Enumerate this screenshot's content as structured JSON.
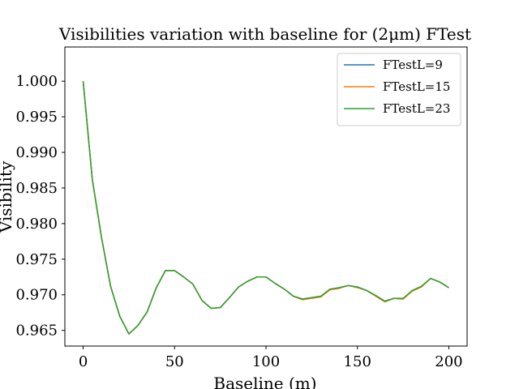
{
  "chart_data": {
    "type": "line",
    "title": "Visibilities variation with baseline for (2μm) FTest",
    "xlabel": "Baseline (m)",
    "ylabel": "Visibility",
    "xlim": [
      -10,
      210
    ],
    "ylim": [
      0.9628,
      1.0048
    ],
    "xticks": [
      0,
      50,
      100,
      150,
      200
    ],
    "yticks": [
      0.965,
      0.97,
      0.975,
      0.98,
      0.985,
      0.99,
      0.995,
      1.0
    ],
    "ytick_labels": [
      "0.965",
      "0.970",
      "0.975",
      "0.980",
      "0.985",
      "0.990",
      "0.995",
      "1.000"
    ],
    "grid": false,
    "legend_position": "top-right",
    "x": [
      0,
      5,
      10,
      15,
      20,
      25,
      30,
      35,
      40,
      45,
      50,
      55,
      60,
      65,
      70,
      75,
      80,
      85,
      90,
      95,
      100,
      105,
      110,
      115,
      120,
      125,
      130,
      135,
      140,
      145,
      150,
      155,
      160,
      165,
      170,
      175,
      180,
      185,
      190,
      195,
      200
    ],
    "series": [
      {
        "name": "FTestL=9",
        "color": "#1f77b4",
        "values": [
          1.0,
          0.9862,
          0.9781,
          0.9712,
          0.967,
          0.9645,
          0.9657,
          0.9676,
          0.971,
          0.9734,
          0.9734,
          0.9725,
          0.9715,
          0.9692,
          0.9681,
          0.9682,
          0.9696,
          0.9711,
          0.9719,
          0.9725,
          0.9725,
          0.9716,
          0.9708,
          0.9698,
          0.9694,
          0.9696,
          0.9698,
          0.9707,
          0.971,
          0.9713,
          0.9711,
          0.9706,
          0.9699,
          0.9691,
          0.9695,
          0.9694,
          0.9706,
          0.9711,
          0.9723,
          0.9718,
          0.971
        ]
      },
      {
        "name": "FTestL=15",
        "color": "#ff7f0e",
        "values": [
          1.0,
          0.9862,
          0.9781,
          0.9712,
          0.967,
          0.9645,
          0.9657,
          0.9676,
          0.971,
          0.9734,
          0.9734,
          0.9725,
          0.9715,
          0.9692,
          0.9681,
          0.9682,
          0.9696,
          0.9711,
          0.9719,
          0.9725,
          0.9725,
          0.9716,
          0.9708,
          0.9698,
          0.9693,
          0.9695,
          0.9697,
          0.9707,
          0.9709,
          0.9713,
          0.971,
          0.9706,
          0.9698,
          0.969,
          0.9695,
          0.9694,
          0.9705,
          0.9711,
          0.9723,
          0.9718,
          0.971
        ]
      },
      {
        "name": "FTestL=23",
        "color": "#2ca02c",
        "values": [
          1.0,
          0.9862,
          0.9781,
          0.9712,
          0.967,
          0.9645,
          0.9657,
          0.9676,
          0.971,
          0.9734,
          0.9734,
          0.9725,
          0.9715,
          0.9692,
          0.9681,
          0.9682,
          0.9696,
          0.9711,
          0.9719,
          0.9725,
          0.9725,
          0.9716,
          0.9708,
          0.9698,
          0.9694,
          0.9696,
          0.9698,
          0.9708,
          0.971,
          0.9713,
          0.9711,
          0.9706,
          0.9699,
          0.9691,
          0.9695,
          0.9695,
          0.9706,
          0.9712,
          0.9723,
          0.9718,
          0.971
        ]
      }
    ]
  }
}
